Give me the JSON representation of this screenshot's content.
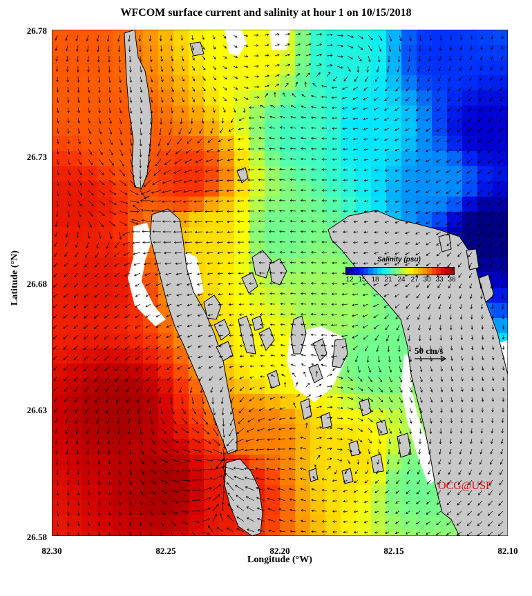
{
  "title": "WFCOM surface current and salinity at hour 1 on 10/15/2018",
  "xlabel": "Longitude (°W)",
  "ylabel": "Latitude (°N)",
  "x_ticks": [
    "82.30",
    "82.25",
    "82.20",
    "82.15",
    "82.10"
  ],
  "y_ticks": [
    "26.78",
    "26.73",
    "26.68",
    "26.63",
    "26.58"
  ],
  "colorbar": {
    "title": "Salinity (psu)",
    "ticks": [
      "12",
      "15",
      "18",
      "21",
      "24",
      "27",
      "30",
      "33",
      "36"
    ],
    "min": 12,
    "max": 36
  },
  "vector_scale_label": "50 cm/s",
  "credit": "OCG@USF",
  "colors": {
    "land": "#c8c8c8",
    "nodata": "#ffffff",
    "credit": "#e01010",
    "salinity_scale": [
      "#00007f",
      "#0000d0",
      "#0030ff",
      "#0090ff",
      "#00e8ff",
      "#40ffc0",
      "#a0ff60",
      "#ffff00",
      "#ffc000",
      "#ff8000",
      "#ff3000",
      "#d00000",
      "#800000"
    ]
  },
  "chart_data": {
    "type": "heatmap",
    "variable": "salinity",
    "units": "psu",
    "title": "WFCOM surface current and salinity at hour 1 on 10/15/2018",
    "xlabel": "Longitude (°W)",
    "ylabel": "Latitude (°N)",
    "xlim": [
      82.3,
      82.1
    ],
    "ylim": [
      26.58,
      26.78
    ],
    "value_range": [
      12,
      36
    ],
    "field_anchors": [
      {
        "lon": 82.29,
        "lat": 26.77,
        "value": 31
      },
      {
        "lon": 82.27,
        "lat": 26.74,
        "value": 31
      },
      {
        "lon": 82.24,
        "lat": 26.72,
        "value": 32
      },
      {
        "lon": 82.21,
        "lat": 26.77,
        "value": 26
      },
      {
        "lon": 82.19,
        "lat": 26.74,
        "value": 22
      },
      {
        "lon": 82.17,
        "lat": 26.77,
        "value": 21
      },
      {
        "lon": 82.16,
        "lat": 26.74,
        "value": 20
      },
      {
        "lon": 82.13,
        "lat": 26.77,
        "value": 16
      },
      {
        "lon": 82.11,
        "lat": 26.74,
        "value": 14
      },
      {
        "lon": 82.11,
        "lat": 26.7,
        "value": 12
      },
      {
        "lon": 82.13,
        "lat": 26.72,
        "value": 18
      },
      {
        "lon": 82.2,
        "lat": 26.7,
        "value": 23
      },
      {
        "lon": 82.23,
        "lat": 26.7,
        "value": 27
      },
      {
        "lon": 82.18,
        "lat": 26.67,
        "value": 24
      },
      {
        "lon": 82.16,
        "lat": 26.65,
        "value": 23
      },
      {
        "lon": 82.2,
        "lat": 26.65,
        "value": 26
      },
      {
        "lon": 82.21,
        "lat": 26.62,
        "value": 30
      },
      {
        "lon": 82.17,
        "lat": 26.61,
        "value": 27
      },
      {
        "lon": 82.14,
        "lat": 26.6,
        "value": 23
      },
      {
        "lon": 82.28,
        "lat": 26.68,
        "value": 33
      },
      {
        "lon": 82.27,
        "lat": 26.63,
        "value": 35
      },
      {
        "lon": 82.25,
        "lat": 26.6,
        "value": 35
      },
      {
        "lon": 82.29,
        "lat": 26.71,
        "value": 33
      },
      {
        "lon": 82.22,
        "lat": 26.6,
        "value": 33
      }
    ],
    "current_features": [
      {
        "lon": 82.26,
        "lat": 26.715,
        "speed_cms": 45
      },
      {
        "lon": 82.225,
        "lat": 26.61,
        "speed_cms": 40
      }
    ],
    "vector_scale_cms": 50,
    "grid": false,
    "legend_position": "center-right"
  }
}
